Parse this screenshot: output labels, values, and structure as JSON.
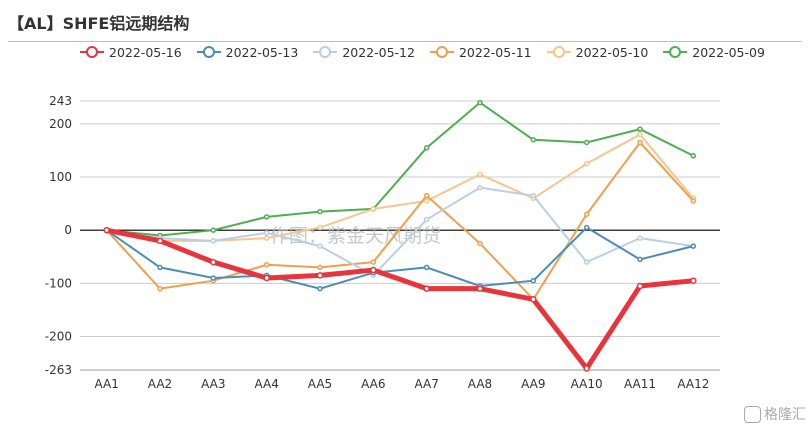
{
  "title": "【AL】SHFE铝远期结构",
  "watermark": "作图：紫金天风期货",
  "brand": "格隆汇",
  "chart_data": {
    "type": "line",
    "categories": [
      "AA1",
      "AA2",
      "AA3",
      "AA4",
      "AA5",
      "AA6",
      "AA7",
      "AA8",
      "AA9",
      "AA10",
      "AA11",
      "AA12"
    ],
    "y_ticks": [
      243,
      200,
      100,
      0,
      -100,
      -200,
      -263
    ],
    "ylim": [
      -263,
      243
    ],
    "legend_position": "top",
    "grid": true,
    "series": [
      {
        "name": "2022-05-16",
        "color": "#e8343a",
        "values": [
          0,
          -20,
          -60,
          -90,
          -85,
          -75,
          -110,
          -110,
          -130,
          -260,
          -105,
          -95
        ]
      },
      {
        "name": "2022-05-13",
        "color": "#4b8db8",
        "values": [
          0,
          -70,
          -90,
          -85,
          -110,
          -80,
          -70,
          -105,
          -95,
          5,
          -55,
          -30
        ]
      },
      {
        "name": "2022-05-12",
        "color": "#b9cfe5",
        "values": [
          0,
          -15,
          -20,
          -5,
          -30,
          -85,
          20,
          80,
          65,
          -60,
          -15,
          -30
        ]
      },
      {
        "name": "2022-05-11",
        "color": "#f0a04b",
        "values": [
          0,
          -110,
          -95,
          -65,
          -70,
          -60,
          65,
          -25,
          -130,
          30,
          165,
          55
        ]
      },
      {
        "name": "2022-05-10",
        "color": "#f7c58f",
        "values": [
          0,
          -20,
          -20,
          -15,
          5,
          40,
          55,
          105,
          60,
          125,
          180,
          60
        ]
      },
      {
        "name": "2022-05-09",
        "color": "#4caf50",
        "values": [
          0,
          -10,
          0,
          25,
          35,
          40,
          155,
          240,
          170,
          165,
          190,
          140
        ]
      }
    ]
  }
}
